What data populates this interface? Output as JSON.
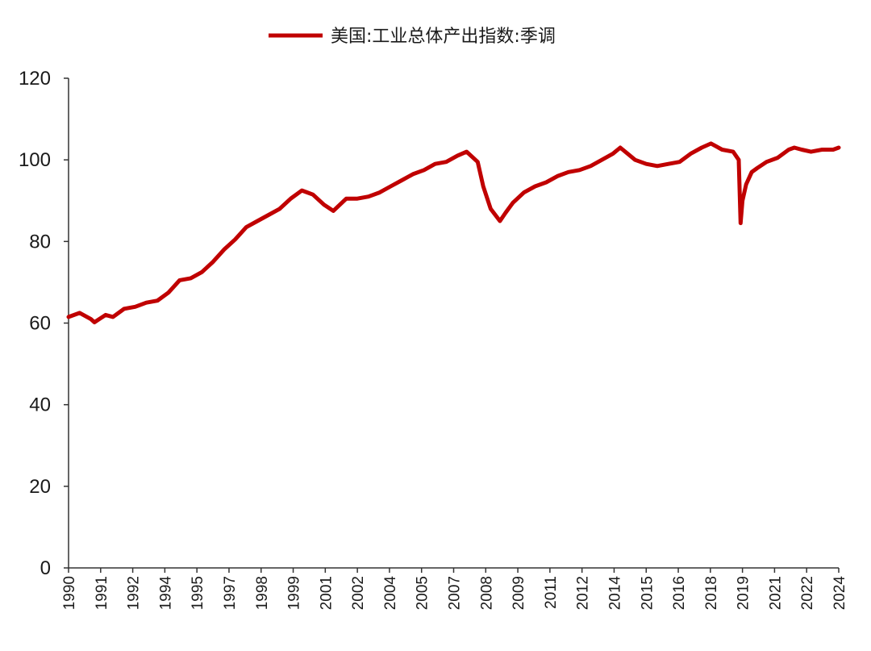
{
  "chart_data": {
    "type": "line",
    "title": "",
    "xlabel": "",
    "ylabel": "",
    "ylim": [
      0,
      120
    ],
    "yticks": [
      "0",
      "20",
      "40",
      "60",
      "80",
      "100",
      "120"
    ],
    "xticks": [
      "1990",
      "1991",
      "1992",
      "1994",
      "1995",
      "1997",
      "1998",
      "1999",
      "2001",
      "2002",
      "2004",
      "2005",
      "2007",
      "2008",
      "2009",
      "2011",
      "2012",
      "2014",
      "2015",
      "2016",
      "2018",
      "2019",
      "2021",
      "2022",
      "2024"
    ],
    "grid": false,
    "legend_position": "top-center",
    "series": [
      {
        "name": "美国:工业总体产出指数:季调",
        "color": "#c00000",
        "x": [
          "1990-01",
          "1990-07",
          "1991-01",
          "1991-03",
          "1991-09",
          "1992-01",
          "1992-07",
          "1993-01",
          "1993-07",
          "1994-01",
          "1994-07",
          "1995-01",
          "1995-07",
          "1996-01",
          "1996-07",
          "1997-01",
          "1997-07",
          "1998-01",
          "1998-07",
          "1999-01",
          "1999-07",
          "2000-01",
          "2000-07",
          "2001-01",
          "2001-07",
          "2001-12",
          "2002-07",
          "2003-01",
          "2003-07",
          "2004-01",
          "2004-07",
          "2005-01",
          "2005-07",
          "2006-01",
          "2006-07",
          "2007-01",
          "2007-07",
          "2007-12",
          "2008-06",
          "2008-09",
          "2009-01",
          "2009-06",
          "2009-09",
          "2010-01",
          "2010-07",
          "2011-01",
          "2011-07",
          "2012-01",
          "2012-07",
          "2013-01",
          "2013-07",
          "2014-01",
          "2014-07",
          "2014-11",
          "2015-03",
          "2015-07",
          "2016-01",
          "2016-07",
          "2017-01",
          "2017-07",
          "2018-01",
          "2018-07",
          "2018-12",
          "2019-06",
          "2019-12",
          "2020-03",
          "2020-04",
          "2020-05",
          "2020-07",
          "2020-10",
          "2021-01",
          "2021-06",
          "2021-12",
          "2022-06",
          "2022-09",
          "2023-01",
          "2023-06",
          "2023-12",
          "2024-06",
          "2024-09"
        ],
        "values": [
          61.5,
          62.5,
          61.0,
          60.2,
          62.0,
          61.5,
          63.5,
          64.0,
          65.0,
          65.5,
          67.5,
          70.5,
          71.0,
          72.5,
          75.0,
          78.0,
          80.5,
          83.5,
          85.0,
          86.5,
          88.0,
          90.5,
          92.5,
          91.5,
          89.0,
          87.5,
          90.5,
          90.5,
          91.0,
          92.0,
          93.5,
          95.0,
          96.5,
          97.5,
          99.0,
          99.5,
          101.0,
          102.0,
          99.5,
          93.5,
          88.0,
          85.0,
          87.0,
          89.5,
          92.0,
          93.5,
          94.5,
          96.0,
          97.0,
          97.5,
          98.5,
          100.0,
          101.5,
          103.0,
          101.5,
          100.0,
          99.0,
          98.5,
          99.0,
          99.5,
          101.5,
          103.0,
          104.0,
          102.5,
          102.0,
          100.0,
          84.5,
          90.0,
          94.0,
          97.0,
          98.0,
          99.5,
          100.5,
          102.5,
          103.0,
          102.5,
          102.0,
          102.5,
          102.5,
          103.0
        ]
      }
    ]
  }
}
